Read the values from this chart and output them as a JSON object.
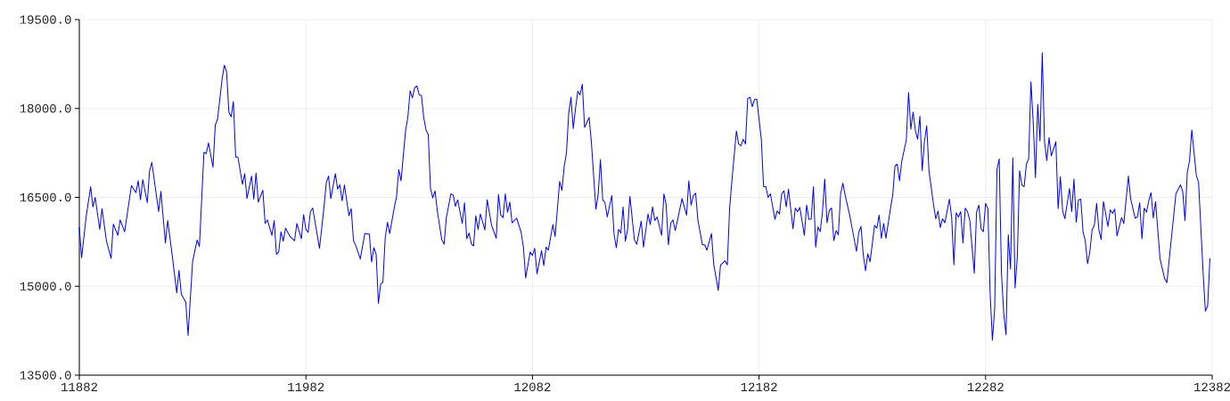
{
  "chart_data": {
    "type": "line",
    "color": "#0000ff",
    "grid": true,
    "xlim": [
      11882,
      12382
    ],
    "ylim": [
      13500,
      19500
    ],
    "xticks": [
      11882,
      11982,
      12082,
      12182,
      12282,
      12382
    ],
    "yticks": [
      {
        "value": 13500,
        "label": "13500.0"
      },
      {
        "value": 15000,
        "label": "15000.0"
      },
      {
        "value": 16500,
        "label": "16500.0"
      },
      {
        "value": 18000,
        "label": "18000.0"
      },
      {
        "value": 19500,
        "label": "19500.0"
      }
    ],
    "x": [
      11882,
      11883,
      11885,
      11887,
      11888,
      11889,
      11891,
      11892,
      11894,
      11896,
      11897,
      11899,
      11900,
      11902,
      11905,
      11907,
      11908,
      11909,
      11910,
      11912,
      11913,
      11914,
      11917,
      11918,
      11920,
      11921,
      11923,
      11925,
      11926,
      11927,
      11929,
      11930,
      11932,
      11934,
      11935,
      11937,
      11938,
      11939,
      11941,
      11942,
      11943,
      11945,
      11946,
      11947,
      11948,
      11949,
      11950,
      11951,
      11952,
      11954,
      11955,
      11956,
      11958,
      11959,
      11960,
      11961,
      11963,
      11964,
      11965,
      11967,
      11968,
      11969,
      11970,
      11971,
      11972,
      11973,
      11975,
      11977,
      11978,
      11980,
      11981,
      11982,
      11983,
      11984,
      11985,
      11988,
      11990,
      11991,
      11992,
      11993,
      11995,
      11996,
      11997,
      11998,
      11999,
      12001,
      12002,
      12003,
      12004,
      12006,
      12008,
      12010,
      12011,
      12012,
      12013,
      12014,
      12015,
      12016,
      12017,
      12018,
      12019,
      12021,
      12022,
      12023,
      12024,
      12026,
      12027,
      12028,
      12029,
      12030,
      12031,
      12032,
      12033,
      12034,
      12035,
      12036,
      12037,
      12038,
      12039,
      12040,
      12042,
      12043,
      12044,
      12046,
      12047,
      12048,
      12049,
      12051,
      12052,
      12053,
      12054,
      12055,
      12056,
      12057,
      12058,
      12059,
      12061,
      12062,
      12064,
      12066,
      12067,
      12068,
      12069,
      12070,
      12071,
      12072,
      12073,
      12075,
      12077,
      12078,
      12079,
      12081,
      12082,
      12083,
      12084,
      12086,
      12087,
      12088,
      12089,
      12091,
      12092,
      12094,
      12095,
      12096,
      12097,
      12098,
      12099,
      12100,
      12101,
      12102,
      12103,
      12104,
      12105,
      12107,
      12108,
      12110,
      12111,
      12112,
      12113,
      12114,
      12115,
      12117,
      12118,
      12119,
      12120,
      12121,
      12122,
      12123,
      12124,
      12125,
      12127,
      12128,
      12130,
      12131,
      12133,
      12134,
      12135,
      12136,
      12137,
      12139,
      12140,
      12141,
      12142,
      12143,
      12144,
      12145,
      12146,
      12148,
      12150,
      12151,
      12152,
      12153,
      12154,
      12155,
      12157,
      12158,
      12159,
      12161,
      12162,
      12164,
      12165,
      12167,
      12168,
      12169,
      12170,
      12172,
      12173,
      12174,
      12175,
      12176,
      12177,
      12178,
      12179,
      12180,
      12181,
      12183,
      12184,
      12185,
      12186,
      12187,
      12189,
      12190,
      12191,
      12192,
      12193,
      12194,
      12195,
      12197,
      12198,
      12199,
      12200,
      12202,
      12203,
      12204,
      12205,
      12206,
      12207,
      12208,
      12209,
      12210,
      12211,
      12212,
      12213,
      12214,
      12215,
      12216,
      12217,
      12218,
      12219,
      12220,
      12222,
      12223,
      12225,
      12226,
      12227,
      12228,
      12229,
      12230,
      12231,
      12233,
      12234,
      12235,
      12236,
      12237,
      12238,
      12240,
      12241,
      12242,
      12243,
      12244,
      12245,
      12247,
      12248,
      12249,
      12250,
      12251,
      12252,
      12253,
      12254,
      12255,
      12256,
      12257,
      12259,
      12260,
      12261,
      12262,
      12263,
      12264,
      12266,
      12267,
      12268,
      12269,
      12270,
      12271,
      12272,
      12273,
      12274,
      12275,
      12277,
      12278,
      12279,
      12280,
      12281,
      12282,
      12283,
      12284,
      12285,
      12286,
      12287,
      12288,
      12289,
      12290,
      12291,
      12292,
      12293,
      12294,
      12295,
      12296,
      12297,
      12298,
      12299,
      12300,
      12301,
      12302,
      12303,
      12304,
      12305,
      12306,
      12307,
      12308,
      12309,
      12310,
      12311,
      12313,
      12314,
      12315,
      12316,
      12317,
      12319,
      12320,
      12321,
      12322,
      12323,
      12324,
      12325,
      12326,
      12327,
      12328,
      12329,
      12330,
      12331,
      12332,
      12333,
      12334,
      12336,
      12337,
      12338,
      12339,
      12340,
      12342,
      12343,
      12345,
      12346,
      12348,
      12349,
      12350,
      12351,
      12352,
      12353,
      12354,
      12355,
      12356,
      12357,
      12359,
      12361,
      12362,
      12363,
      12366,
      12368,
      12369,
      12370,
      12371,
      12372,
      12373,
      12375,
      12376,
      12378,
      12379,
      12380,
      12381
    ],
    "values": [
      16000,
      15480,
      16170,
      16680,
      16340,
      16500,
      15960,
      16310,
      15760,
      15470,
      16050,
      15860,
      16120,
      15920,
      16700,
      16580,
      16780,
      16460,
      16800,
      16410,
      16950,
      17090,
      16260,
      16600,
      15730,
      16110,
      15520,
      14890,
      15270,
      14870,
      14730,
      14170,
      15420,
      15780,
      15670,
      17260,
      17240,
      17420,
      17010,
      17720,
      17820,
      18490,
      18730,
      18620,
      17940,
      17860,
      18120,
      17180,
      17180,
      16720,
      16900,
      16480,
      16860,
      16470,
      16910,
      16420,
      16620,
      16060,
      16120,
      15860,
      16110,
      15540,
      15580,
      15920,
      15760,
      15980,
      15840,
      15770,
      16060,
      15800,
      16210,
      15960,
      15910,
      16260,
      16320,
      15640,
      16340,
      16750,
      16860,
      16480,
      16900,
      16640,
      16710,
      16440,
      16710,
      16190,
      16310,
      15770,
      15690,
      15460,
      15890,
      15880,
      15410,
      15650,
      15540,
      14710,
      15040,
      15070,
      15820,
      16080,
      15890,
      16330,
      16510,
      16970,
      16780,
      17630,
      17850,
      18300,
      18180,
      18350,
      18380,
      18230,
      18220,
      17850,
      17640,
      17560,
      16650,
      16490,
      16610,
      16270,
      15780,
      15710,
      16160,
      16560,
      16540,
      16350,
      16460,
      16060,
      16410,
      15800,
      15900,
      15720,
      15680,
      16190,
      15960,
      16220,
      15950,
      16460,
      16020,
      15810,
      16550,
      16200,
      16160,
      16560,
      16250,
      16420,
      16070,
      16150,
      15910,
      15660,
      15140,
      15580,
      15520,
      15640,
      15210,
      15600,
      15350,
      15660,
      15610,
      16040,
      15840,
      16770,
      16620,
      17020,
      17250,
      17920,
      18190,
      17660,
      18000,
      18290,
      18230,
      18410,
      17680,
      17850,
      17430,
      16300,
      16550,
      17140,
      16460,
      16410,
      16170,
      16530,
      15880,
      15650,
      15960,
      15900,
      16340,
      15760,
      15960,
      16520,
      15780,
      15710,
      16100,
      15660,
      16220,
      16040,
      16340,
      16110,
      16170,
      15860,
      16560,
      16380,
      15700,
      16060,
      16120,
      15940,
      16110,
      16480,
      16200,
      16780,
      16370,
      16530,
      16570,
      16120,
      15700,
      15700,
      15610,
      15890,
      15370,
      14930,
      15360,
      15430,
      15360,
      16310,
      16770,
      17620,
      17400,
      17370,
      17480,
      17400,
      18170,
      18190,
      18030,
      18150,
      18160,
      17480,
      16680,
      16680,
      16500,
      16560,
      16130,
      16270,
      16220,
      16560,
      16610,
      16340,
      16640,
      15970,
      16320,
      16260,
      16330,
      15860,
      16370,
      16130,
      16130,
      16680,
      15660,
      16000,
      15920,
      16260,
      16810,
      16070,
      16280,
      16320,
      15770,
      15940,
      15870,
      16560,
      16740,
      16540,
      16200,
      16000,
      15590,
      15910,
      16010,
      15530,
      15260,
      15550,
      15410,
      16030,
      15980,
      16200,
      15810,
      16060,
      15810,
      16310,
      16540,
      17030,
      17060,
      16780,
      17110,
      17470,
      18270,
      17650,
      17940,
      17630,
      17480,
      17870,
      16950,
      17440,
      17710,
      16950,
      16380,
      16140,
      16270,
      15990,
      16140,
      16070,
      16470,
      16170,
      15360,
      16240,
      16170,
      16260,
      15730,
      16320,
      16260,
      16120,
      15220,
      16250,
      16370,
      15970,
      15920,
      16400,
      16310,
      14870,
      14090,
      14620,
      16970,
      17150,
      15220,
      14540,
      14180,
      15870,
      15290,
      17170,
      14970,
      15500,
      16950,
      16710,
      16680,
      17060,
      17150,
      18450,
      17780,
      16830,
      18070,
      17450,
      18940,
      17440,
      17120,
      17510,
      17200,
      17440,
      16310,
      16850,
      16270,
      16140,
      16650,
      16260,
      16810,
      16080,
      16460,
      16470,
      15920,
      15760,
      15380,
      15580,
      15950,
      16030,
      16400,
      15950,
      15790,
      16430,
      16010,
      16290,
      16230,
      16300,
      15850,
      16160,
      16060,
      16860,
      16480,
      16150,
      16170,
      16410,
      15800,
      16320,
      16250,
      16440,
      16580,
      16150,
      16430,
      15460,
      15130,
      15060,
      15440,
      16560,
      16710,
      16600,
      16110,
      16920,
      17120,
      17640,
      16870,
      16750,
      15220,
      14580,
      14670,
      15470
    ]
  }
}
